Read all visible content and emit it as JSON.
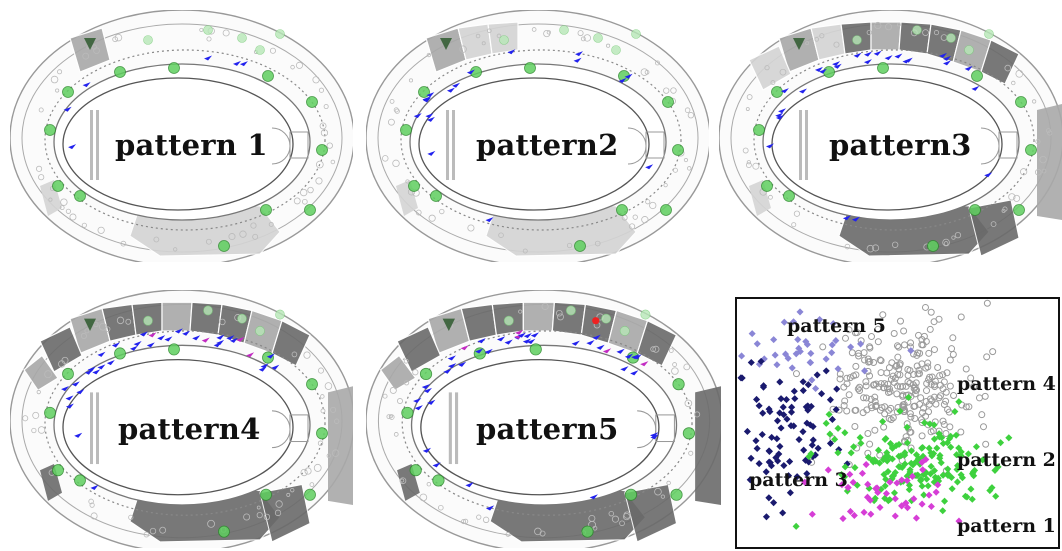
{
  "panels": [
    {
      "label": "pattern 1"
    },
    {
      "label": "pattern2"
    },
    {
      "label": "pattern3"
    },
    {
      "label": "pattern4"
    },
    {
      "label": "pattern5"
    }
  ],
  "scatter": {
    "labels": {
      "p5": "pattern 5",
      "p4": "pattern 4",
      "p3": "pattern 3",
      "p2": "pattern 2",
      "p1": "pattern 1"
    },
    "colors": {
      "p5": "#8a86d6",
      "p4": "#9a9a9a",
      "p3": "#1a1a6e",
      "p2": "#3ed13e",
      "p1": "#d63ed6"
    }
  },
  "colors": {
    "beacon_green": "#5fcf5f",
    "arrow_blue": "#2222ee",
    "zone_dark": "#6a6a6a",
    "zone_mid": "#a8a8a8",
    "zone_light": "#d4d4d4"
  }
}
